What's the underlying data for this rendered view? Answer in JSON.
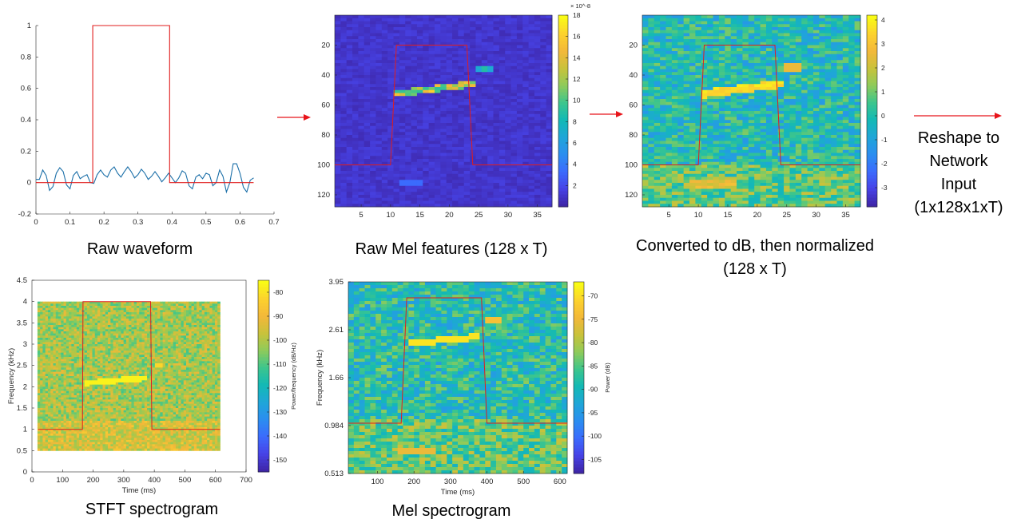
{
  "captions": {
    "raw_waveform": "Raw waveform",
    "raw_mel": "Raw Mel features (128 x T)",
    "db_norm_line1": "Converted to dB, then normalized",
    "db_norm_line2": "(128 x T)",
    "stft": "STFT spectrogram",
    "mel_spec": "Mel spectrogram",
    "reshape_lines": [
      "Reshape to",
      "Network",
      "Input",
      "(1x128x1xT)"
    ]
  },
  "colors": {
    "arrow": "#e8141a",
    "box": "#e11d1d",
    "waveform": "#1b6fa8",
    "parula": [
      "#3e26a8",
      "#4743e7",
      "#3b6cfd",
      "#2b8ef0",
      "#1fa6d8",
      "#13b9b5",
      "#3cc58d",
      "#8ecb5b",
      "#c8c23b",
      "#f3b83a",
      "#fcd12e",
      "#f9fb15"
    ]
  },
  "chart_data": [
    {
      "id": "waveform",
      "type": "line",
      "title": "",
      "xlabel": "",
      "ylabel": "",
      "xlim": [
        0,
        0.7
      ],
      "ylim": [
        -0.2,
        1
      ],
      "xticks": [
        "0",
        "0.1",
        "0.2",
        "0.3",
        "0.4",
        "0.5",
        "0.6",
        "0.7"
      ],
      "yticks": [
        "-0.2",
        "0",
        "0.2",
        "0.4",
        "0.6",
        "0.8",
        "1"
      ],
      "series": [
        {
          "x": [
            0,
            0.02,
            0.04,
            0.06,
            0.08,
            0.1,
            0.12,
            0.14,
            0.16,
            0.18,
            0.2,
            0.22,
            0.24,
            0.26,
            0.28,
            0.3,
            0.32,
            0.34,
            0.36,
            0.38,
            0.4,
            0.42,
            0.44,
            0.46,
            0.48,
            0.5,
            0.52,
            0.54,
            0.56,
            0.58,
            0.6,
            0.62,
            0.64
          ],
          "y": [
            0.02,
            0.08,
            -0.05,
            0.06,
            0.07,
            -0.04,
            0.07,
            0.04,
            0.0,
            0.05,
            0.05,
            0.08,
            0.06,
            0.07,
            0.07,
            0.05,
            0.06,
            0.04,
            0.04,
            0.03,
            0.03,
            0.03,
            0.06,
            -0.04,
            0.05,
            0.06,
            -0.02,
            0.08,
            -0.06,
            0.12,
            0.06,
            -0.06,
            0.03
          ]
        },
        {
          "x": [
            0,
            0.167,
            0.167,
            0.393,
            0.393,
            0.64
          ],
          "y": [
            0,
            0,
            1,
            1,
            0,
            0
          ]
        }
      ]
    },
    {
      "id": "raw_mel",
      "type": "heatmap",
      "xlim": [
        0.5,
        37.5
      ],
      "ylim": [
        128,
        0
      ],
      "xticks": [
        "5",
        "10",
        "15",
        "20",
        "25",
        "30",
        "35"
      ],
      "yticks": [
        "20",
        "40",
        "60",
        "80",
        "100",
        "120"
      ],
      "colorbar": {
        "min": 0,
        "max": 18,
        "ticks": [
          "2",
          "4",
          "6",
          "8",
          "10",
          "12",
          "14",
          "16",
          "18"
        ],
        "exponent": "× 10^-8"
      },
      "box": {
        "x": [
          0.5,
          10,
          11,
          23,
          24,
          37.5
        ],
        "y": [
          100,
          100,
          20,
          20,
          100,
          100
        ]
      }
    },
    {
      "id": "db_norm",
      "type": "heatmap",
      "xlim": [
        0.5,
        37.5
      ],
      "ylim": [
        128,
        0
      ],
      "xticks": [
        "5",
        "10",
        "15",
        "20",
        "25",
        "30",
        "35"
      ],
      "yticks": [
        "20",
        "40",
        "60",
        "80",
        "100",
        "120"
      ],
      "colorbar": {
        "min": -3.8,
        "max": 4.2,
        "ticks": [
          "4",
          "3",
          "2",
          "1",
          "0",
          "-1",
          "-2",
          "-3"
        ]
      },
      "box": {
        "x": [
          0.5,
          10,
          11,
          23,
          24,
          37.5
        ],
        "y": [
          100,
          100,
          20,
          20,
          100,
          100
        ]
      }
    },
    {
      "id": "stft",
      "type": "heatmap",
      "xlabel": "Time (ms)",
      "ylabel": "Frequency (kHz)",
      "xlim": [
        0,
        700
      ],
      "ylim": [
        0,
        4.5
      ],
      "xticks": [
        "0",
        "100",
        "200",
        "300",
        "400",
        "500",
        "600",
        "700"
      ],
      "yticks": [
        "0",
        "0.5",
        "1",
        "1.5",
        "2",
        "2.5",
        "3",
        "3.5",
        "4",
        "4.5"
      ],
      "colorbar": {
        "label": "Power/frequency (dB/Hz)",
        "min": -155,
        "max": -75,
        "ticks": [
          "-80",
          "-90",
          "-100",
          "-110",
          "-120",
          "-130",
          "-140",
          "-150"
        ]
      },
      "box": {
        "x": [
          20,
          165,
          167,
          388,
          392,
          615
        ],
        "y": [
          1,
          1,
          4,
          4,
          1,
          1
        ]
      }
    },
    {
      "id": "mel_spec",
      "type": "heatmap",
      "xlabel": "Time (ms)",
      "ylabel": "Frequency (kHz)",
      "xlim": [
        20,
        620
      ],
      "xticks": [
        "100",
        "200",
        "300",
        "400",
        "500",
        "600"
      ],
      "yticks": [
        "3.95",
        "2.61",
        "1.66",
        "0.984",
        "0.513"
      ],
      "colorbar": {
        "label": "Power (dB)",
        "min": -108,
        "max": -67,
        "ticks": [
          "-70",
          "-75",
          "-80",
          "-85",
          "-90",
          "-95",
          "-100",
          "-105"
        ]
      },
      "box": {
        "x": [
          20,
          165,
          180,
          385,
          400,
          620
        ],
        "y": [
          0.92,
          0.92,
          3.7,
          3.7,
          0.92,
          0.92
        ]
      }
    }
  ]
}
